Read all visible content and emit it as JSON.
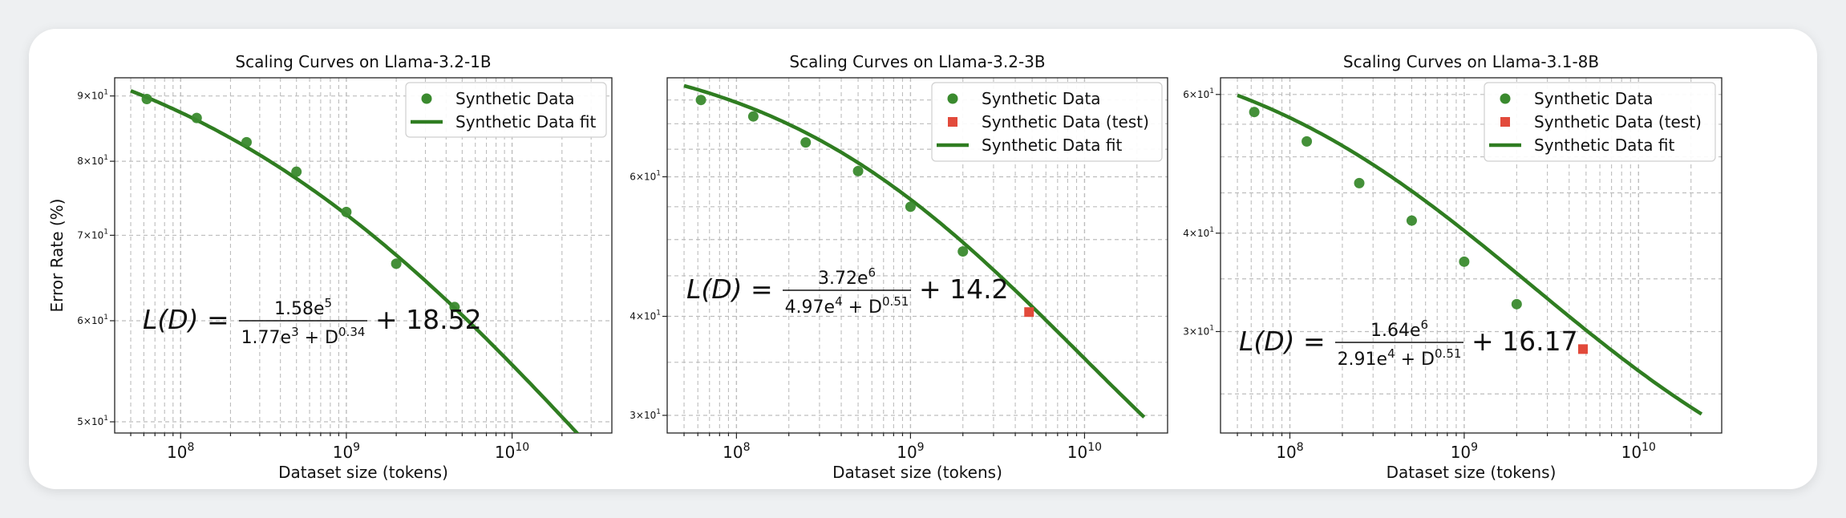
{
  "chart_data": [
    {
      "type": "scatter",
      "title": "Scaling Curves on Llama-3.2-1B",
      "xlabel": "Dataset size (tokens)",
      "ylabel": "Error Rate (%)",
      "xscale": "log",
      "yscale": "log",
      "xlim": [
        40000000,
        40000000000
      ],
      "ylim": [
        49,
        93
      ],
      "grid": true,
      "legend_placement": "top-right",
      "x_ticks": [
        {
          "value": 100000000,
          "base": "10",
          "exp": "8"
        },
        {
          "value": 1000000000,
          "base": "10",
          "exp": "9"
        },
        {
          "value": 10000000000,
          "base": "10",
          "exp": "10"
        }
      ],
      "y_ticks": [
        {
          "value": 50,
          "mant": "5",
          "times": "×",
          "base": "10",
          "exp": "1"
        },
        {
          "value": 60,
          "mant": "6",
          "times": "×",
          "base": "10",
          "exp": "1"
        },
        {
          "value": 70,
          "mant": "7",
          "times": "×",
          "base": "10",
          "exp": "1"
        },
        {
          "value": 80,
          "mant": "8",
          "times": "×",
          "base": "10",
          "exp": "1"
        },
        {
          "value": 90,
          "mant": "9",
          "times": "×",
          "base": "10",
          "exp": "1"
        }
      ],
      "legend": [
        {
          "label": "Synthetic Data",
          "marker": "circle"
        },
        {
          "label": "Synthetic Data fit",
          "marker": "line"
        }
      ],
      "fit": {
        "a": 158000,
        "b": 1770,
        "alpha": 0.34,
        "c": 18.52,
        "x_range": [
          50000000,
          25000000000
        ]
      },
      "equation": {
        "lhs": "L(D) = ",
        "num": "1.58e",
        "num_exp": "5",
        "den": "1.77e",
        "den_exp": "3",
        "den_plus": " + D",
        "den_pow": "0.34",
        "rhs": "+ 18.52"
      },
      "series": [
        {
          "name": "Synthetic Data",
          "marker": "circle",
          "color": "#3a8a2e",
          "x": [
            62500000,
            125000000,
            250000000,
            500000000,
            1000000000,
            2000000000,
            4500000000
          ],
          "y": [
            89.5,
            86.5,
            82.8,
            78.5,
            73.0,
            66.5,
            61.5
          ]
        }
      ]
    },
    {
      "type": "scatter",
      "title": "Scaling Curves on Llama-3.2-3B",
      "xlabel": "Dataset size (tokens)",
      "ylabel": "",
      "xscale": "log",
      "yscale": "log",
      "xlim": [
        40000000,
        30000000000
      ],
      "ylim": [
        28.5,
        80
      ],
      "grid": true,
      "legend_placement": "top-right",
      "x_ticks": [
        {
          "value": 100000000,
          "base": "10",
          "exp": "8"
        },
        {
          "value": 1000000000,
          "base": "10",
          "exp": "9"
        },
        {
          "value": 10000000000,
          "base": "10",
          "exp": "10"
        }
      ],
      "y_ticks": [
        {
          "value": 30,
          "mant": "3",
          "times": "×",
          "base": "10",
          "exp": "1"
        },
        {
          "value": 40,
          "mant": "4",
          "times": "×",
          "base": "10",
          "exp": "1"
        },
        {
          "value": 60,
          "mant": "6",
          "times": "×",
          "base": "10",
          "exp": "1"
        }
      ],
      "legend": [
        {
          "label": "Synthetic Data",
          "marker": "circle"
        },
        {
          "label": "Synthetic Data (test)",
          "marker": "square"
        },
        {
          "label": "Synthetic Data fit",
          "marker": "line"
        }
      ],
      "fit": {
        "a": 3720000,
        "b": 49700,
        "alpha": 0.51,
        "c": 14.2,
        "x_range": [
          50000000,
          22000000000
        ]
      },
      "equation": {
        "lhs": "L(D) = ",
        "num": "3.72e",
        "num_exp": "6",
        "den": "4.97e",
        "den_exp": "4",
        "den_plus": " + D",
        "den_pow": "0.51",
        "rhs": "+ 14.2"
      },
      "series": [
        {
          "name": "Synthetic Data",
          "marker": "circle",
          "color": "#3a8a2e",
          "x": [
            62500000,
            125000000,
            250000000,
            500000000,
            1000000000,
            2000000000
          ],
          "y": [
            75.0,
            71.5,
            66.3,
            61.0,
            55.0,
            48.3
          ]
        },
        {
          "name": "Synthetic Data (test)",
          "marker": "square",
          "color": "#e24a3b",
          "x": [
            4800000000
          ],
          "y": [
            40.5
          ]
        }
      ]
    },
    {
      "type": "scatter",
      "title": "Scaling Curves on Llama-3.1-8B",
      "xlabel": "Dataset size (tokens)",
      "ylabel": "",
      "xscale": "log",
      "yscale": "log",
      "xlim": [
        40000000,
        30000000000
      ],
      "ylim": [
        22.3,
        63
      ],
      "grid": true,
      "legend_placement": "top-right",
      "x_ticks": [
        {
          "value": 100000000,
          "base": "10",
          "exp": "8"
        },
        {
          "value": 1000000000,
          "base": "10",
          "exp": "9"
        },
        {
          "value": 10000000000,
          "base": "10",
          "exp": "10"
        }
      ],
      "y_ticks": [
        {
          "value": 30,
          "mant": "3",
          "times": "×",
          "base": "10",
          "exp": "1"
        },
        {
          "value": 40,
          "mant": "4",
          "times": "×",
          "base": "10",
          "exp": "1"
        },
        {
          "value": 60,
          "mant": "6",
          "times": "×",
          "base": "10",
          "exp": "1"
        }
      ],
      "legend": [
        {
          "label": "Synthetic Data",
          "marker": "circle"
        },
        {
          "label": "Synthetic Data (test)",
          "marker": "square"
        },
        {
          "label": "Synthetic Data fit",
          "marker": "line"
        }
      ],
      "fit": {
        "a": 1640000,
        "b": 29100,
        "alpha": 0.51,
        "c": 16.17,
        "x_range": [
          50000000,
          23000000000
        ]
      },
      "equation": {
        "lhs": "L(D) = ",
        "num": "1.64e",
        "num_exp": "6",
        "den": "2.91e",
        "den_exp": "4",
        "den_plus": " + D",
        "den_pow": "0.51",
        "rhs": "+ 16.17"
      },
      "series": [
        {
          "name": "Synthetic Data",
          "marker": "circle",
          "color": "#3a8a2e",
          "x": [
            62500000,
            125000000,
            250000000,
            500000000,
            1000000000,
            2000000000
          ],
          "y": [
            57.0,
            52.3,
            46.3,
            41.5,
            36.8,
            32.5
          ]
        },
        {
          "name": "Synthetic Data (test)",
          "marker": "square",
          "color": "#e24a3b",
          "x": [
            4800000000
          ],
          "y": [
            28.5
          ]
        }
      ]
    }
  ],
  "colors": {
    "fit_line": "#2f7d21",
    "point": "#3a8a2e",
    "test": "#e24a3b",
    "grid": "#bdbdbd"
  }
}
